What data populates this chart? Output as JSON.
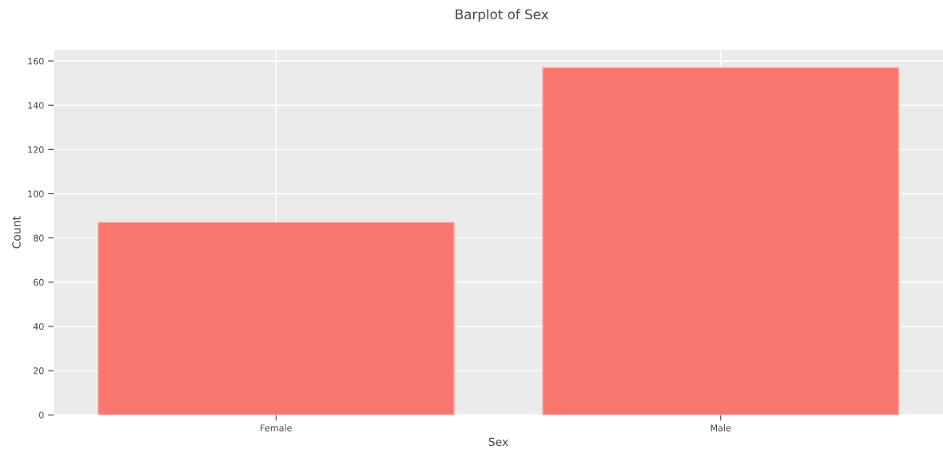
{
  "chart_data": {
    "type": "bar",
    "title": "Barplot of Sex",
    "xlabel": "Sex",
    "ylabel": "Count",
    "categories": [
      "Female",
      "Male"
    ],
    "values": [
      87,
      157
    ],
    "color": "#f8766d",
    "ylim": [
      0,
      165
    ],
    "yticks": [
      0,
      20,
      40,
      60,
      80,
      100,
      120,
      140,
      160
    ],
    "grid": true
  }
}
